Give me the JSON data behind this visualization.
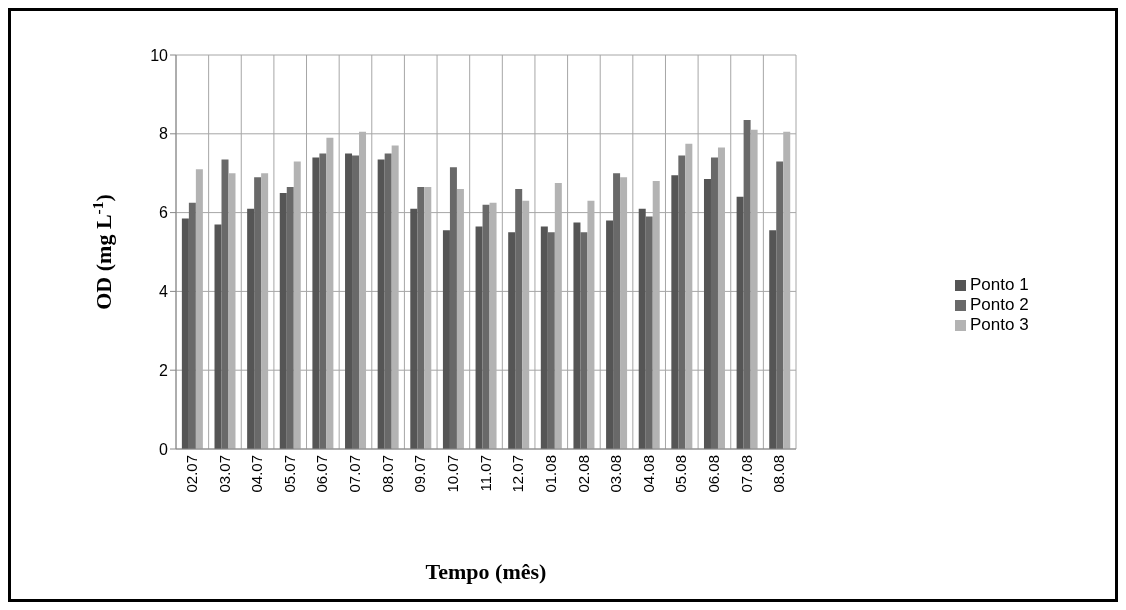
{
  "chart_data": {
    "type": "bar",
    "xlabel": "Tempo (mês)",
    "ylabel": "OD (mg L$^{-1}$)",
    "categories": [
      "02.07",
      "03.07",
      "04.07",
      "05.07",
      "06.07",
      "07.07",
      "08.07",
      "09.07",
      "10.07",
      "11.07",
      "12.07",
      "01.08",
      "02.08",
      "03.08",
      "04.08",
      "05.08",
      "06.08",
      "07.08",
      "08.08"
    ],
    "series": [
      {
        "name": "Ponto 1",
        "color": "#555555",
        "values": [
          5.85,
          5.7,
          6.1,
          6.5,
          7.4,
          7.5,
          7.35,
          6.1,
          5.55,
          5.65,
          5.5,
          5.65,
          5.75,
          5.8,
          6.1,
          6.95,
          6.85,
          6.4,
          5.55
        ]
      },
      {
        "name": "Ponto 2",
        "color": "#696969",
        "values": [
          6.25,
          7.35,
          6.9,
          6.65,
          7.5,
          7.45,
          7.5,
          6.65,
          7.15,
          6.2,
          6.6,
          5.5,
          5.5,
          7.0,
          5.9,
          7.45,
          7.4,
          8.35,
          7.3
        ]
      },
      {
        "name": "Ponto 3",
        "color": "#b3b3b3",
        "values": [
          7.1,
          7.0,
          7.0,
          7.3,
          7.9,
          8.05,
          7.7,
          6.65,
          6.6,
          6.25,
          6.3,
          6.75,
          6.3,
          6.9,
          6.8,
          7.75,
          7.65,
          8.1,
          8.05
        ]
      }
    ],
    "ylim": [
      0,
      10
    ],
    "yticks": [
      0,
      2,
      4,
      6,
      8,
      10
    ],
    "grid": true,
    "legend": "right"
  }
}
